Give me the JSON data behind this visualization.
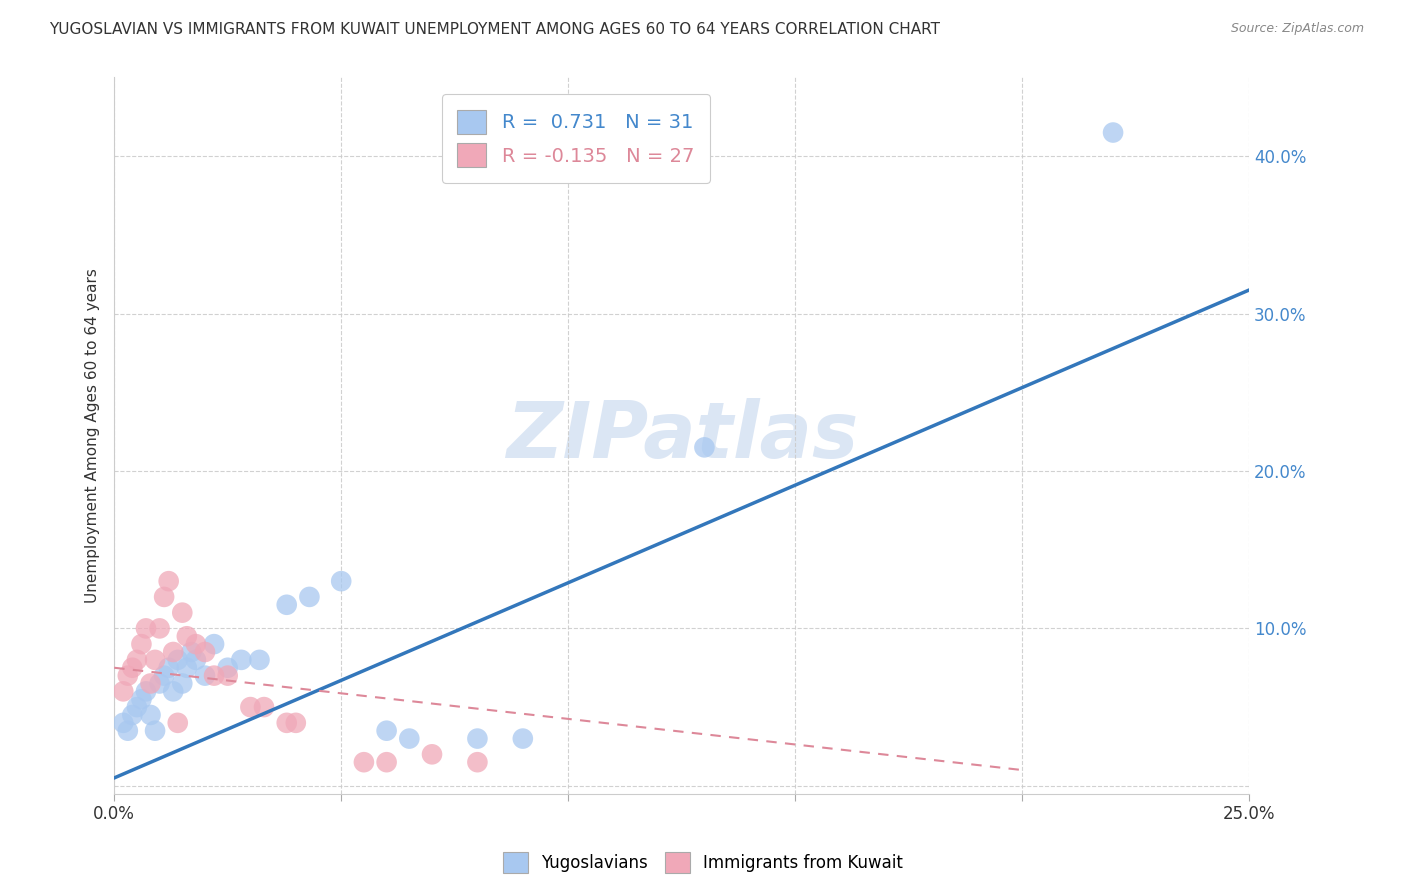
{
  "title": "YUGOSLAVIAN VS IMMIGRANTS FROM KUWAIT UNEMPLOYMENT AMONG AGES 60 TO 64 YEARS CORRELATION CHART",
  "source": "Source: ZipAtlas.com",
  "xlabel": "",
  "ylabel": "Unemployment Among Ages 60 to 64 years",
  "xlim": [
    0.0,
    0.25
  ],
  "ylim": [
    -0.005,
    0.45
  ],
  "x_ticks": [
    0.0,
    0.05,
    0.1,
    0.15,
    0.2,
    0.25
  ],
  "y_ticks": [
    0.0,
    0.1,
    0.2,
    0.3,
    0.4
  ],
  "background_color": "#ffffff",
  "grid_color": "#cccccc",
  "yugoslavian_color": "#a8c8f0",
  "kuwait_color": "#f0a8b8",
  "yugoslavian_line_color": "#3377bb",
  "kuwait_line_color": "#dd8899",
  "watermark": "ZIPatlas",
  "R_yugo": 0.731,
  "N_yugo": 31,
  "R_kuwait": -0.135,
  "N_kuwait": 27,
  "yugo_x": [
    0.002,
    0.003,
    0.004,
    0.005,
    0.006,
    0.007,
    0.008,
    0.009,
    0.01,
    0.011,
    0.012,
    0.013,
    0.014,
    0.015,
    0.016,
    0.017,
    0.018,
    0.02,
    0.022,
    0.025,
    0.028,
    0.032,
    0.038,
    0.043,
    0.05,
    0.06,
    0.065,
    0.08,
    0.09,
    0.13,
    0.22
  ],
  "yugo_y": [
    0.04,
    0.035,
    0.045,
    0.05,
    0.055,
    0.06,
    0.045,
    0.035,
    0.065,
    0.07,
    0.075,
    0.06,
    0.08,
    0.065,
    0.075,
    0.085,
    0.08,
    0.07,
    0.09,
    0.075,
    0.08,
    0.08,
    0.115,
    0.12,
    0.13,
    0.035,
    0.03,
    0.03,
    0.03,
    0.215,
    0.415
  ],
  "kuwait_x": [
    0.002,
    0.003,
    0.004,
    0.005,
    0.006,
    0.007,
    0.008,
    0.009,
    0.01,
    0.011,
    0.012,
    0.013,
    0.014,
    0.015,
    0.016,
    0.018,
    0.02,
    0.022,
    0.025,
    0.03,
    0.033,
    0.038,
    0.04,
    0.055,
    0.06,
    0.07,
    0.08
  ],
  "kuwait_y": [
    0.06,
    0.07,
    0.075,
    0.08,
    0.09,
    0.1,
    0.065,
    0.08,
    0.1,
    0.12,
    0.13,
    0.085,
    0.04,
    0.11,
    0.095,
    0.09,
    0.085,
    0.07,
    0.07,
    0.05,
    0.05,
    0.04,
    0.04,
    0.015,
    0.015,
    0.02,
    0.015
  ],
  "yugo_line_x0": 0.0,
  "yugo_line_y0": 0.005,
  "yugo_line_x1": 0.25,
  "yugo_line_y1": 0.315,
  "kuwait_line_x0": 0.0,
  "kuwait_line_y0": 0.075,
  "kuwait_line_x1": 0.2,
  "kuwait_line_y1": 0.01
}
